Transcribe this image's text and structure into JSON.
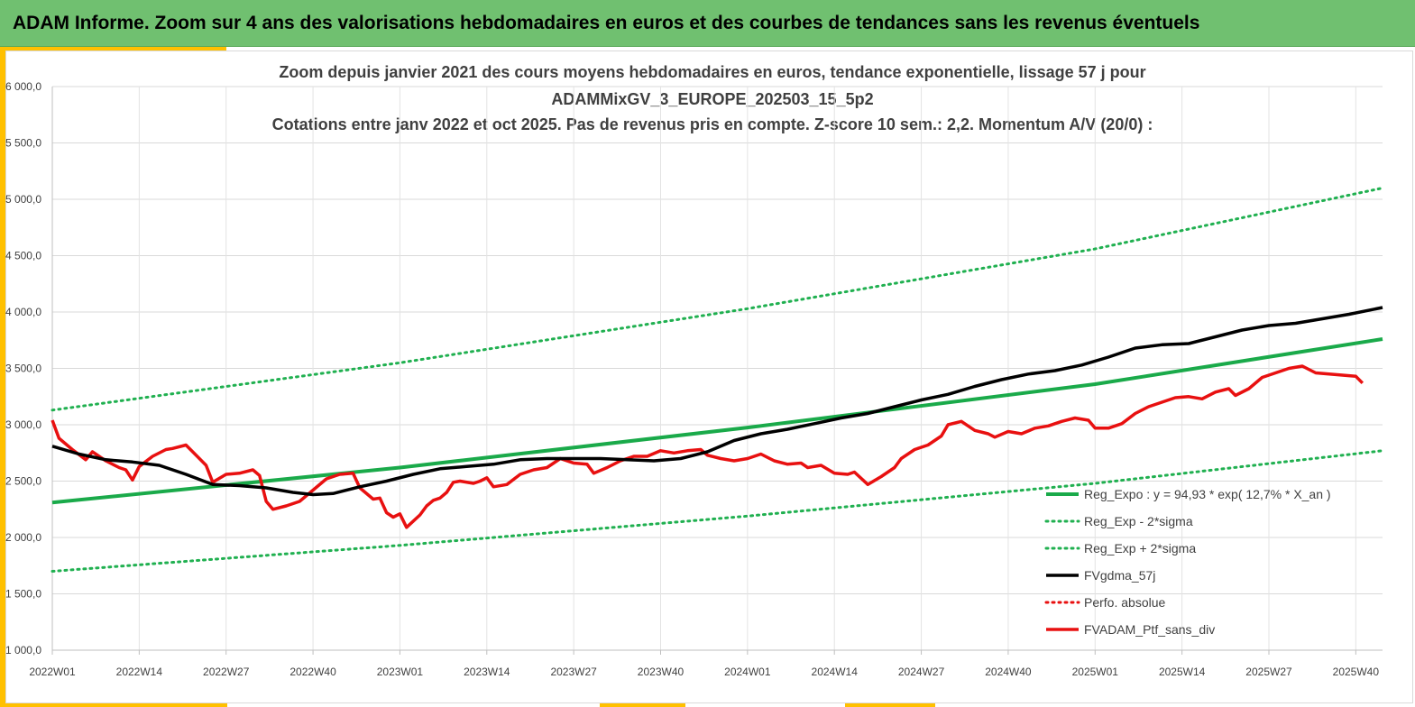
{
  "header": {
    "title": "ADAM Informe. Zoom sur 4 ans des valorisations hebdomadaires en euros et des courbes de tendances sans les revenus éventuels"
  },
  "colors": {
    "banner": "#70c070",
    "accent": "#ffc000",
    "trend": "#1aaa4a",
    "band": "#20b050",
    "sma": "#000000",
    "price": "#e81010"
  },
  "chart_data": {
    "type": "line",
    "title_lines": [
      "Zoom depuis janvier 2021 des cours moyens hebdomadaires  en euros, tendance exponentielle, lissage 57 j pour",
      "ADAMMixGV_3_EUROPE_202503_15_5p2",
      "Cotations  entre janv 2022 et oct 2025. Pas de revenus pris en compte. Z-score 10 sem.: 2,2. Momentum A/V (20/0) :"
    ],
    "x_tick_labels": [
      "2022W01",
      "2022W14",
      "2022W27",
      "2022W40",
      "2023W01",
      "2023W14",
      "2023W27",
      "2023W40",
      "2024W01",
      "2024W14",
      "2024W27",
      "2024W40",
      "2025W01",
      "2025W14",
      "2025W27",
      "2025W40"
    ],
    "x_start_week": 0,
    "x_end_week": 199,
    "y_tick_labels": [
      "1 000,0",
      "1 500,0",
      "2 000,0",
      "2 500,0",
      "3 000,0",
      "3 500,0",
      "4 000,0",
      "4 500,0",
      "5 000,0",
      "5 500,0",
      "6 000,0"
    ],
    "ylim": [
      1000,
      6000
    ],
    "grid": true,
    "legend_position": "bottom-right",
    "series": [
      {
        "name": "Reg_Expo : y = 94,93 * exp( 12,7% *  X_an )",
        "style": "solid",
        "color": "#1aaa4a",
        "points": [
          [
            0,
            2310
          ],
          [
            52,
            2620
          ],
          [
            104,
            2975
          ],
          [
            156,
            3360
          ],
          [
            199,
            3760
          ]
        ]
      },
      {
        "name": "Reg_Exp - 2*sigma",
        "style": "dotted",
        "color": "#20b050",
        "points": [
          [
            0,
            1700
          ],
          [
            52,
            1930
          ],
          [
            104,
            2190
          ],
          [
            156,
            2480
          ],
          [
            199,
            2770
          ]
        ]
      },
      {
        "name": "Reg_Exp + 2*sigma",
        "style": "dotted",
        "color": "#20b050",
        "points": [
          [
            0,
            3130
          ],
          [
            52,
            3550
          ],
          [
            104,
            4030
          ],
          [
            156,
            4560
          ],
          [
            199,
            5100
          ]
        ]
      },
      {
        "name": "FVgdma_57j",
        "style": "solid",
        "color": "#000000",
        "points": [
          [
            0,
            2810
          ],
          [
            4,
            2740
          ],
          [
            8,
            2690
          ],
          [
            12,
            2670
          ],
          [
            16,
            2640
          ],
          [
            20,
            2560
          ],
          [
            24,
            2470
          ],
          [
            28,
            2460
          ],
          [
            32,
            2440
          ],
          [
            36,
            2400
          ],
          [
            39,
            2380
          ],
          [
            42,
            2390
          ],
          [
            46,
            2450
          ],
          [
            50,
            2500
          ],
          [
            54,
            2560
          ],
          [
            58,
            2610
          ],
          [
            62,
            2630
          ],
          [
            66,
            2650
          ],
          [
            70,
            2690
          ],
          [
            74,
            2700
          ],
          [
            78,
            2700
          ],
          [
            82,
            2700
          ],
          [
            86,
            2690
          ],
          [
            90,
            2680
          ],
          [
            94,
            2700
          ],
          [
            98,
            2760
          ],
          [
            102,
            2860
          ],
          [
            106,
            2920
          ],
          [
            110,
            2960
          ],
          [
            114,
            3010
          ],
          [
            118,
            3060
          ],
          [
            122,
            3100
          ],
          [
            126,
            3160
          ],
          [
            130,
            3220
          ],
          [
            134,
            3270
          ],
          [
            138,
            3340
          ],
          [
            142,
            3400
          ],
          [
            146,
            3450
          ],
          [
            150,
            3480
          ],
          [
            154,
            3530
          ],
          [
            158,
            3600
          ],
          [
            162,
            3680
          ],
          [
            166,
            3710
          ],
          [
            170,
            3720
          ],
          [
            174,
            3780
          ],
          [
            178,
            3840
          ],
          [
            182,
            3880
          ],
          [
            186,
            3900
          ],
          [
            190,
            3940
          ],
          [
            194,
            3980
          ],
          [
            199,
            4040
          ]
        ]
      },
      {
        "name": "Perfo. absolue",
        "style": "dotted",
        "color": "#e81010",
        "points": []
      },
      {
        "name": "FVADAM_Ptf_sans_div",
        "style": "solid",
        "color": "#e81010",
        "points": [
          [
            0,
            3040
          ],
          [
            1,
            2880
          ],
          [
            3,
            2780
          ],
          [
            5,
            2690
          ],
          [
            6,
            2760
          ],
          [
            8,
            2680
          ],
          [
            10,
            2620
          ],
          [
            11,
            2600
          ],
          [
            12,
            2510
          ],
          [
            13,
            2630
          ],
          [
            15,
            2720
          ],
          [
            17,
            2780
          ],
          [
            18,
            2790
          ],
          [
            20,
            2820
          ],
          [
            22,
            2700
          ],
          [
            23,
            2640
          ],
          [
            24,
            2490
          ],
          [
            26,
            2560
          ],
          [
            28,
            2570
          ],
          [
            30,
            2600
          ],
          [
            31,
            2550
          ],
          [
            32,
            2320
          ],
          [
            33,
            2250
          ],
          [
            35,
            2280
          ],
          [
            37,
            2320
          ],
          [
            39,
            2420
          ],
          [
            41,
            2520
          ],
          [
            43,
            2560
          ],
          [
            45,
            2570
          ],
          [
            46,
            2440
          ],
          [
            48,
            2340
          ],
          [
            49,
            2350
          ],
          [
            50,
            2220
          ],
          [
            51,
            2180
          ],
          [
            52,
            2210
          ],
          [
            53,
            2090
          ],
          [
            55,
            2200
          ],
          [
            56,
            2280
          ],
          [
            57,
            2330
          ],
          [
            58,
            2350
          ],
          [
            59,
            2400
          ],
          [
            60,
            2490
          ],
          [
            61,
            2500
          ],
          [
            63,
            2480
          ],
          [
            64,
            2500
          ],
          [
            65,
            2530
          ],
          [
            66,
            2450
          ],
          [
            68,
            2470
          ],
          [
            70,
            2560
          ],
          [
            72,
            2600
          ],
          [
            74,
            2620
          ],
          [
            76,
            2700
          ],
          [
            78,
            2660
          ],
          [
            80,
            2650
          ],
          [
            81,
            2570
          ],
          [
            83,
            2620
          ],
          [
            85,
            2680
          ],
          [
            87,
            2720
          ],
          [
            89,
            2720
          ],
          [
            91,
            2770
          ],
          [
            93,
            2750
          ],
          [
            95,
            2770
          ],
          [
            97,
            2780
          ],
          [
            98,
            2730
          ],
          [
            100,
            2700
          ],
          [
            102,
            2680
          ],
          [
            104,
            2700
          ],
          [
            106,
            2740
          ],
          [
            108,
            2680
          ],
          [
            110,
            2650
          ],
          [
            112,
            2660
          ],
          [
            113,
            2620
          ],
          [
            115,
            2640
          ],
          [
            117,
            2570
          ],
          [
            119,
            2560
          ],
          [
            120,
            2580
          ],
          [
            122,
            2470
          ],
          [
            124,
            2540
          ],
          [
            126,
            2620
          ],
          [
            127,
            2700
          ],
          [
            129,
            2780
          ],
          [
            131,
            2820
          ],
          [
            133,
            2900
          ],
          [
            134,
            3000
          ],
          [
            136,
            3030
          ],
          [
            138,
            2950
          ],
          [
            140,
            2920
          ],
          [
            141,
            2890
          ],
          [
            143,
            2940
          ],
          [
            145,
            2920
          ],
          [
            147,
            2970
          ],
          [
            149,
            2990
          ],
          [
            151,
            3030
          ],
          [
            153,
            3060
          ],
          [
            155,
            3040
          ],
          [
            156,
            2970
          ],
          [
            158,
            2970
          ],
          [
            160,
            3010
          ],
          [
            162,
            3100
          ],
          [
            164,
            3160
          ],
          [
            166,
            3200
          ],
          [
            168,
            3240
          ],
          [
            170,
            3250
          ],
          [
            172,
            3230
          ],
          [
            174,
            3290
          ],
          [
            176,
            3320
          ],
          [
            177,
            3260
          ],
          [
            179,
            3320
          ],
          [
            181,
            3420
          ],
          [
            183,
            3460
          ],
          [
            185,
            3500
          ],
          [
            187,
            3520
          ],
          [
            189,
            3460
          ],
          [
            191,
            3450
          ],
          [
            193,
            3440
          ],
          [
            195,
            3430
          ],
          [
            196,
            3370
          ]
        ]
      }
    ],
    "legend_entries": [
      "Reg_Expo : y = 94,93 * exp( 12,7% *  X_an )",
      "Reg_Exp - 2*sigma",
      "Reg_Exp + 2*sigma",
      "FVgdma_57j",
      "Perfo. absolue",
      "FVADAM_Ptf_sans_div"
    ]
  }
}
